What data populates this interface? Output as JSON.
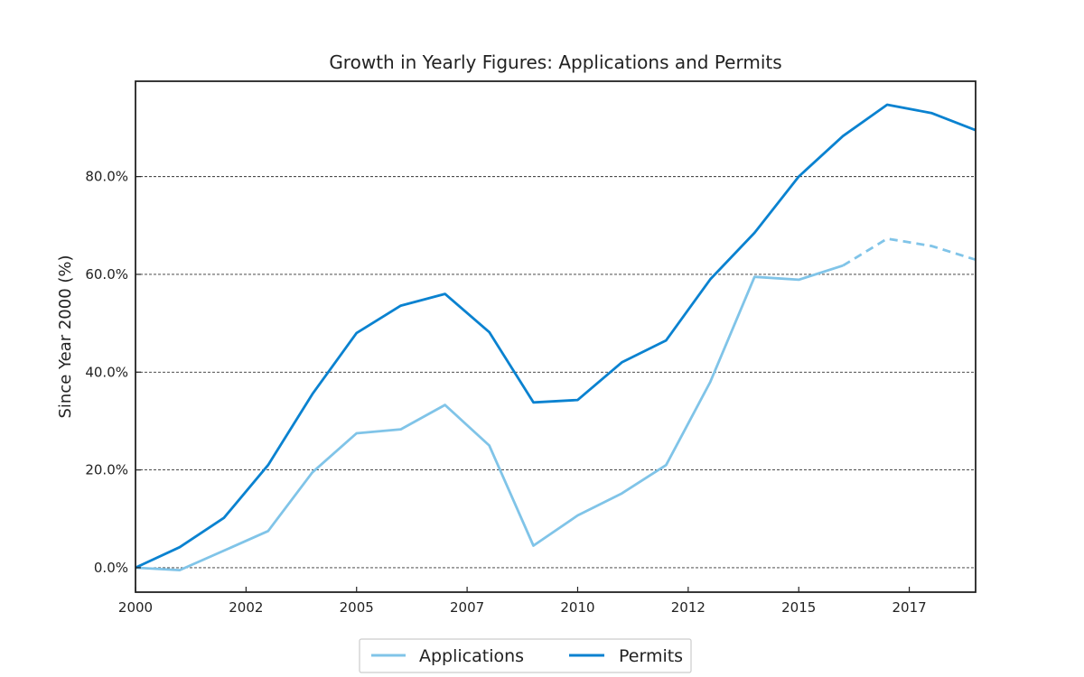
{
  "chart_data": {
    "type": "line",
    "title": "Growth in Yearly Figures: Applications and Permits",
    "xlabel": "",
    "ylabel": "Since Year 2000 (%)",
    "x": [
      2000,
      2001,
      2002,
      2003,
      2004,
      2005,
      2006,
      2007,
      2008,
      2009,
      2010,
      2011,
      2012,
      2013,
      2014,
      2015,
      2016,
      2017,
      2018,
      2019
    ],
    "x_tick_labels": [
      "2000",
      "2002",
      "2005",
      "2007",
      "2010",
      "2012",
      "2015",
      "2017"
    ],
    "y_ticks": [
      0,
      20,
      40,
      60,
      80
    ],
    "y_tick_labels": [
      "0.0%",
      "20.0%",
      "40.0%",
      "60.0%",
      "80.0%"
    ],
    "xlim": [
      2000,
      2019
    ],
    "ylim": [
      -5,
      99.5
    ],
    "grid": "horizontal dashed",
    "legend_position": "bottom-center",
    "series": [
      {
        "name": "Applications",
        "color": "#80c4e8",
        "values": [
          0,
          -0.5,
          3.5,
          7.5,
          19.5,
          27.5,
          28.3,
          33.3,
          25.0,
          4.5,
          10.7,
          15.2,
          21.0,
          38.0,
          59.5,
          58.9,
          61.8,
          67.3,
          65.8,
          63.0
        ],
        "projected_from_x": 2016
      },
      {
        "name": "Permits",
        "color": "#0a82d0",
        "values": [
          0,
          4.2,
          10.2,
          21.0,
          35.5,
          48.0,
          53.6,
          56.0,
          48.2,
          33.8,
          34.3,
          42.0,
          46.5,
          59.0,
          68.5,
          80.0,
          88.3,
          94.7,
          93.0,
          89.5
        ]
      }
    ]
  }
}
